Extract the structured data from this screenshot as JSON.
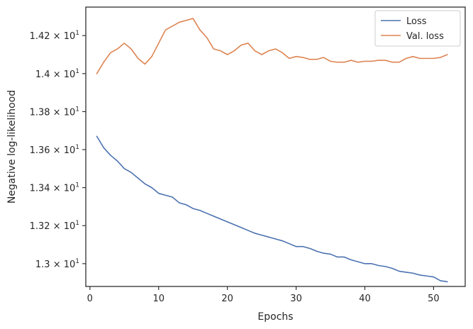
{
  "chart_data": {
    "type": "line",
    "xlabel": "Epochs",
    "ylabel": "Negative log-likelihood",
    "xlim": [
      -0.6,
      54.6
    ],
    "ylim": [
      12.88,
      14.35
    ],
    "xticks": [
      0,
      10,
      20,
      30,
      40,
      50
    ],
    "xtick_labels": [
      "0",
      "10",
      "20",
      "30",
      "40",
      "50"
    ],
    "yticks": [
      13.0,
      13.2,
      13.4,
      13.6,
      13.8,
      14.0,
      14.2
    ],
    "ytick_labels": [
      {
        "mantissa": "1.3",
        "times": "×",
        "base": "10",
        "exp": "1"
      },
      {
        "mantissa": "1.32",
        "times": "×",
        "base": "10",
        "exp": "1"
      },
      {
        "mantissa": "1.34",
        "times": "×",
        "base": "10",
        "exp": "1"
      },
      {
        "mantissa": "1.36",
        "times": "×",
        "base": "10",
        "exp": "1"
      },
      {
        "mantissa": "1.38",
        "times": "×",
        "base": "10",
        "exp": "1"
      },
      {
        "mantissa": "1.4",
        "times": "×",
        "base": "10",
        "exp": "1"
      },
      {
        "mantissa": "1.42",
        "times": "×",
        "base": "10",
        "exp": "1"
      }
    ],
    "grid": false,
    "legend_position": "top-right",
    "x": [
      1,
      2,
      3,
      4,
      5,
      6,
      7,
      8,
      9,
      10,
      11,
      12,
      13,
      14,
      15,
      16,
      17,
      18,
      19,
      20,
      21,
      22,
      23,
      24,
      25,
      26,
      27,
      28,
      29,
      30,
      31,
      32,
      33,
      34,
      35,
      36,
      37,
      38,
      39,
      40,
      41,
      42,
      43,
      44,
      45,
      46,
      47,
      48,
      49,
      50,
      51,
      52
    ],
    "series": [
      {
        "name": "Loss",
        "color": "#4c72b0",
        "values": [
          13.67,
          13.61,
          13.57,
          13.54,
          13.5,
          13.48,
          13.45,
          13.42,
          13.4,
          13.37,
          13.36,
          13.35,
          13.32,
          13.31,
          13.29,
          13.28,
          13.265,
          13.25,
          13.235,
          13.22,
          13.205,
          13.19,
          13.175,
          13.16,
          13.15,
          13.14,
          13.13,
          13.12,
          13.105,
          13.09,
          13.09,
          13.08,
          13.065,
          13.055,
          13.05,
          13.035,
          13.035,
          13.02,
          13.01,
          13.0,
          13.0,
          12.99,
          12.985,
          12.975,
          12.96,
          12.955,
          12.95,
          12.94,
          12.935,
          12.93,
          12.91,
          12.905
        ]
      },
      {
        "name": "Val. loss",
        "color": "#dd8452",
        "values": [
          14.0,
          14.06,
          14.11,
          14.13,
          14.16,
          14.13,
          14.08,
          14.05,
          14.09,
          14.16,
          14.23,
          14.25,
          14.27,
          14.28,
          14.29,
          14.23,
          14.19,
          14.13,
          14.12,
          14.1,
          14.12,
          14.15,
          14.16,
          14.12,
          14.1,
          14.12,
          14.13,
          14.11,
          14.08,
          14.09,
          14.085,
          14.075,
          14.075,
          14.085,
          14.065,
          14.06,
          14.06,
          14.07,
          14.06,
          14.065,
          14.065,
          14.07,
          14.07,
          14.06,
          14.06,
          14.08,
          14.09,
          14.08,
          14.08,
          14.08,
          14.085,
          14.1
        ]
      }
    ]
  }
}
